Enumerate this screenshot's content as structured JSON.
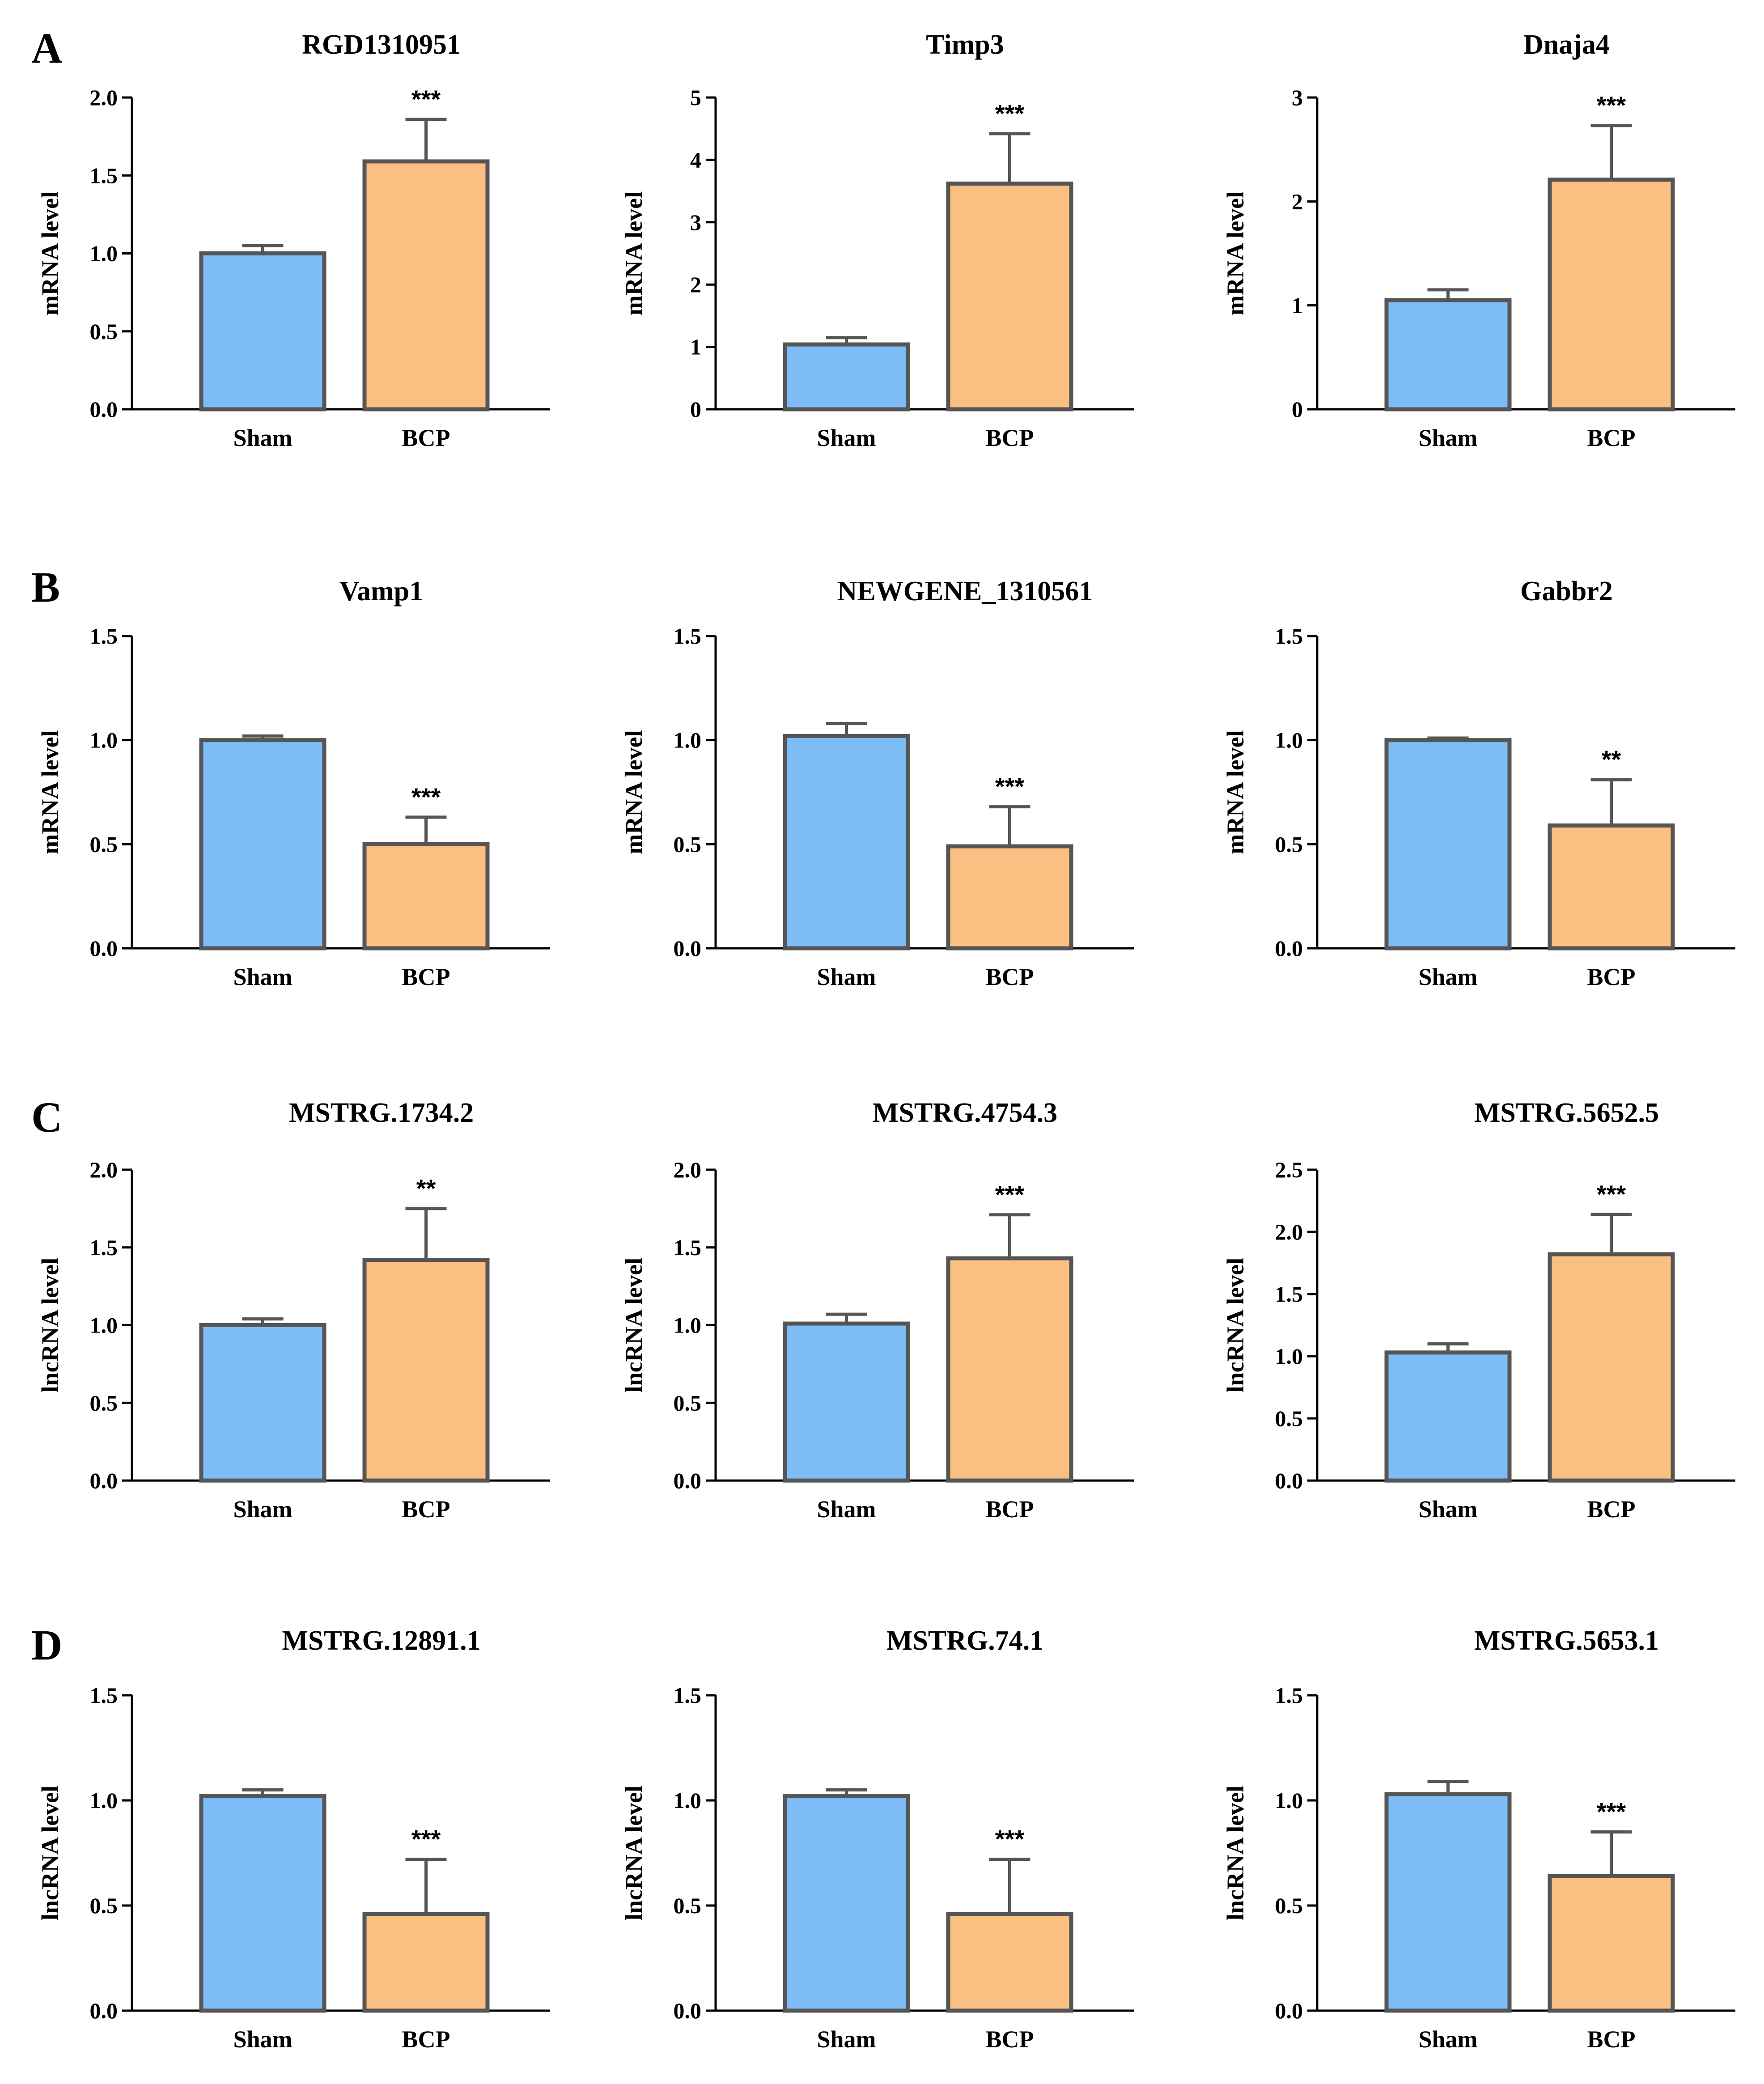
{
  "panel_labels": [
    "A",
    "B",
    "C",
    "D"
  ],
  "chart_data": [
    {
      "type": "bar",
      "panel": "A",
      "title": "RGD1310951",
      "ylabel": "mRNA level",
      "categories": [
        "Sham",
        "BCP"
      ],
      "values": [
        1.0,
        1.59
      ],
      "errors": [
        0.05,
        0.27
      ],
      "ylim": [
        0,
        2.0
      ],
      "yticks": [
        "0.0",
        "0.5",
        "1.0",
        "1.5",
        "2.0"
      ],
      "annotations": [
        "",
        "***"
      ],
      "colors": [
        "#7dbcf7",
        "#fbbf82"
      ]
    },
    {
      "type": "bar",
      "panel": "A",
      "title": "Timp3",
      "ylabel": "mRNA level",
      "categories": [
        "Sham",
        "BCP"
      ],
      "values": [
        1.04,
        3.62
      ],
      "errors": [
        0.11,
        0.8
      ],
      "ylim": [
        0,
        5
      ],
      "yticks": [
        "0",
        "1",
        "2",
        "3",
        "4",
        "5"
      ],
      "annotations": [
        "",
        "***"
      ],
      "colors": [
        "#7dbcf7",
        "#fbbf82"
      ]
    },
    {
      "type": "bar",
      "panel": "A",
      "title": "Dnaja4",
      "ylabel": "mRNA level",
      "categories": [
        "Sham",
        "BCP"
      ],
      "values": [
        1.05,
        2.21
      ],
      "errors": [
        0.1,
        0.52
      ],
      "ylim": [
        0,
        3
      ],
      "yticks": [
        "0",
        "1",
        "2",
        "3"
      ],
      "annotations": [
        "",
        "***"
      ],
      "colors": [
        "#7dbcf7",
        "#fbbf82"
      ]
    },
    {
      "type": "bar",
      "panel": "B",
      "title": "Vamp1",
      "ylabel": "mRNA level",
      "categories": [
        "Sham",
        "BCP"
      ],
      "values": [
        1.0,
        0.5
      ],
      "errors": [
        0.02,
        0.13
      ],
      "ylim": [
        0,
        1.5
      ],
      "yticks": [
        "0.0",
        "0.5",
        "1.0",
        "1.5"
      ],
      "annotations": [
        "",
        "***"
      ],
      "colors": [
        "#7dbcf7",
        "#fbbf82"
      ]
    },
    {
      "type": "bar",
      "panel": "B",
      "title": "NEWGENE_1310561",
      "ylabel": "mRNA level",
      "categories": [
        "Sham",
        "BCP"
      ],
      "values": [
        1.02,
        0.49
      ],
      "errors": [
        0.06,
        0.19
      ],
      "ylim": [
        0,
        1.5
      ],
      "yticks": [
        "0.0",
        "0.5",
        "1.0",
        "1.5"
      ],
      "annotations": [
        "",
        "***"
      ],
      "colors": [
        "#7dbcf7",
        "#fbbf82"
      ]
    },
    {
      "type": "bar",
      "panel": "B",
      "title": "Gabbr2",
      "ylabel": "mRNA level",
      "categories": [
        "Sham",
        "BCP"
      ],
      "values": [
        1.0,
        0.59
      ],
      "errors": [
        0.01,
        0.22
      ],
      "ylim": [
        0,
        1.5
      ],
      "yticks": [
        "0.0",
        "0.5",
        "1.0",
        "1.5"
      ],
      "annotations": [
        "",
        "**"
      ],
      "colors": [
        "#7dbcf7",
        "#fbbf82"
      ]
    },
    {
      "type": "bar",
      "panel": "C",
      "title": "MSTRG.1734.2",
      "ylabel": "lncRNA level",
      "categories": [
        "Sham",
        "BCP"
      ],
      "values": [
        1.0,
        1.42
      ],
      "errors": [
        0.04,
        0.33
      ],
      "ylim": [
        0,
        2.0
      ],
      "yticks": [
        "0.0",
        "0.5",
        "1.0",
        "1.5",
        "2.0"
      ],
      "annotations": [
        "",
        "**"
      ],
      "colors": [
        "#7dbcf7",
        "#fbbf82"
      ]
    },
    {
      "type": "bar",
      "panel": "C",
      "title": "MSTRG.4754.3",
      "ylabel": "lncRNA level",
      "categories": [
        "Sham",
        "BCP"
      ],
      "values": [
        1.01,
        1.43
      ],
      "errors": [
        0.06,
        0.28
      ],
      "ylim": [
        0,
        2.0
      ],
      "yticks": [
        "0.0",
        "0.5",
        "1.0",
        "1.5",
        "2.0"
      ],
      "annotations": [
        "",
        "***"
      ],
      "colors": [
        "#7dbcf7",
        "#fbbf82"
      ]
    },
    {
      "type": "bar",
      "panel": "C",
      "title": "MSTRG.5652.5",
      "ylabel": "lncRNA level",
      "categories": [
        "Sham",
        "BCP"
      ],
      "values": [
        1.03,
        1.82
      ],
      "errors": [
        0.07,
        0.32
      ],
      "ylim": [
        0,
        2.5
      ],
      "yticks": [
        "0.0",
        "0.5",
        "1.0",
        "1.5",
        "2.0",
        "2.5"
      ],
      "annotations": [
        "",
        "***"
      ],
      "colors": [
        "#7dbcf7",
        "#fbbf82"
      ]
    },
    {
      "type": "bar",
      "panel": "D",
      "title": "MSTRG.12891.1",
      "ylabel": "lncRNA level",
      "categories": [
        "Sham",
        "BCP"
      ],
      "values": [
        1.02,
        0.46
      ],
      "errors": [
        0.03,
        0.26
      ],
      "ylim": [
        0,
        1.5
      ],
      "yticks": [
        "0.0",
        "0.5",
        "1.0",
        "1.5"
      ],
      "annotations": [
        "",
        "***"
      ],
      "colors": [
        "#7dbcf7",
        "#fbbf82"
      ]
    },
    {
      "type": "bar",
      "panel": "D",
      "title": "MSTRG.74.1",
      "ylabel": "lncRNA level",
      "categories": [
        "Sham",
        "BCP"
      ],
      "values": [
        1.02,
        0.46
      ],
      "errors": [
        0.03,
        0.26
      ],
      "ylim": [
        0,
        1.5
      ],
      "yticks": [
        "0.0",
        "0.5",
        "1.0",
        "1.5"
      ],
      "annotations": [
        "",
        "***"
      ],
      "colors": [
        "#7dbcf7",
        "#fbbf82"
      ]
    },
    {
      "type": "bar",
      "panel": "D",
      "title": "MSTRG.5653.1",
      "ylabel": "lncRNA level",
      "categories": [
        "Sham",
        "BCP"
      ],
      "values": [
        1.03,
        0.64
      ],
      "errors": [
        0.06,
        0.21
      ],
      "ylim": [
        0,
        1.5
      ],
      "yticks": [
        "0.0",
        "0.5",
        "1.0",
        "1.5"
      ],
      "annotations": [
        "",
        "***"
      ],
      "colors": [
        "#7dbcf7",
        "#fbbf82"
      ]
    }
  ]
}
